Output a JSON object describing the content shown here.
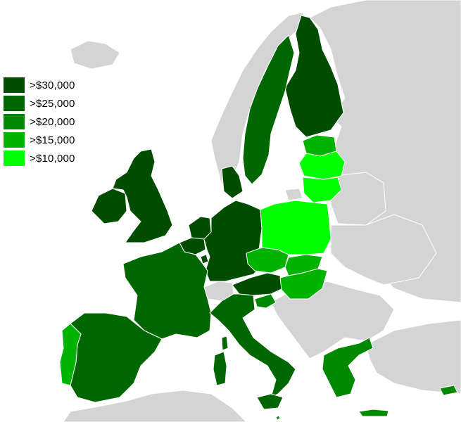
{
  "legend": [
    {
      "label": ">$30,000",
      "color": "#004d00"
    },
    {
      "label": ">$25,000",
      "color": "#006600"
    },
    {
      "label": ">$20,000",
      "color": "#008800"
    },
    {
      "label": ">$15,000",
      "color": "#00b300"
    },
    {
      "label": ">$10,000",
      "color": "#00ff00"
    }
  ],
  "nonmember_color": "#d4d4d4",
  "countries": [
    {
      "name": "Finland",
      "tier": 0
    },
    {
      "name": "Sweden",
      "tier": 1
    },
    {
      "name": "Denmark",
      "tier": 0
    },
    {
      "name": "Ireland",
      "tier": 0
    },
    {
      "name": "United Kingdom",
      "tier": 0
    },
    {
      "name": "Netherlands",
      "tier": 0
    },
    {
      "name": "Belgium",
      "tier": 0
    },
    {
      "name": "Luxembourg",
      "tier": 0
    },
    {
      "name": "Germany",
      "tier": 0
    },
    {
      "name": "Austria",
      "tier": 0
    },
    {
      "name": "France",
      "tier": 1
    },
    {
      "name": "Italy",
      "tier": 1
    },
    {
      "name": "Spain",
      "tier": 1
    },
    {
      "name": "Greece",
      "tier": 2
    },
    {
      "name": "Cyprus",
      "tier": 2
    },
    {
      "name": "Slovenia",
      "tier": 2
    },
    {
      "name": "Portugal",
      "tier": 3
    },
    {
      "name": "Czech Republic",
      "tier": 3
    },
    {
      "name": "Slovakia",
      "tier": 3
    },
    {
      "name": "Hungary",
      "tier": 3
    },
    {
      "name": "Estonia",
      "tier": 3
    },
    {
      "name": "Latvia",
      "tier": 4
    },
    {
      "name": "Lithuania",
      "tier": 4
    },
    {
      "name": "Poland",
      "tier": 4
    },
    {
      "name": "Malta",
      "tier": 2
    }
  ]
}
